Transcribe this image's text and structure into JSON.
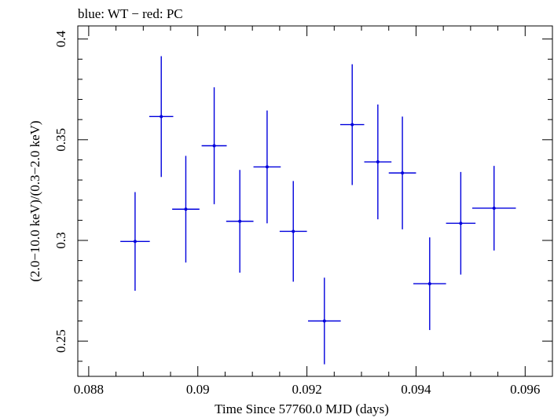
{
  "chart_data": {
    "type": "scatter",
    "title": "blue: WT − red: PC",
    "xlabel": "Time Since 57760.0 MJD (days)",
    "ylabel": "(2.0−10.0 keV)/(0.3−2.0 keV)",
    "xlim": [
      0.0878,
      0.0965
    ],
    "ylim": [
      0.2325,
      0.4065
    ],
    "x_ticks": [
      0.088,
      0.09,
      0.092,
      0.094,
      0.096
    ],
    "x_tick_labels": [
      "0.088",
      "0.09",
      "0.092",
      "0.094",
      "0.096"
    ],
    "y_ticks": [
      0.25,
      0.3,
      0.35,
      0.4
    ],
    "y_tick_labels": [
      "0.25",
      "0.3",
      "0.35",
      "0.4"
    ],
    "grid": false,
    "legend": "none",
    "series": [
      {
        "color": "#0000dd",
        "points": [
          {
            "x": 0.08885,
            "xerr": 0.00027,
            "y": 0.2995,
            "yerr": 0.0245
          },
          {
            "x": 0.08933,
            "xerr": 0.00022,
            "y": 0.3615,
            "yerr": 0.03
          },
          {
            "x": 0.08878,
            "xerr": 0.0,
            "y": 0.2995,
            "yerr": 0.0,
            "skip": true
          }
        ]
      }
    ]
  }
}
